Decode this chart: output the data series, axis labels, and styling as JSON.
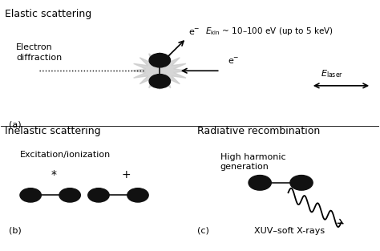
{
  "bg_color": "#ffffff",
  "text_color": "#000000",
  "title_elastic": "Elastic scattering",
  "title_inelastic": "Inelastic scattering",
  "title_radiative": "Radiative recombination",
  "label_electron_diff": "Electron\ndiffraction",
  "label_ekin": "$E_{\\mathrm{kin}}$ ~ 10–100 eV (up to 5 keV)",
  "label_elaser": "$E_{\\mathrm{laser}}$",
  "label_excitation": "Excitation/ionization",
  "label_hhg": "High harmonic\ngeneration",
  "label_xuv": "XUV–soft X-rays",
  "label_a": "(a)",
  "label_b": "(b)",
  "label_c": "(c)",
  "label_eminus_top": "e$^{-}$",
  "label_eminus_right": "e$^{-}$",
  "molecule_color": "#111111",
  "figsize": [
    4.74,
    3.13
  ],
  "dpi": 100
}
